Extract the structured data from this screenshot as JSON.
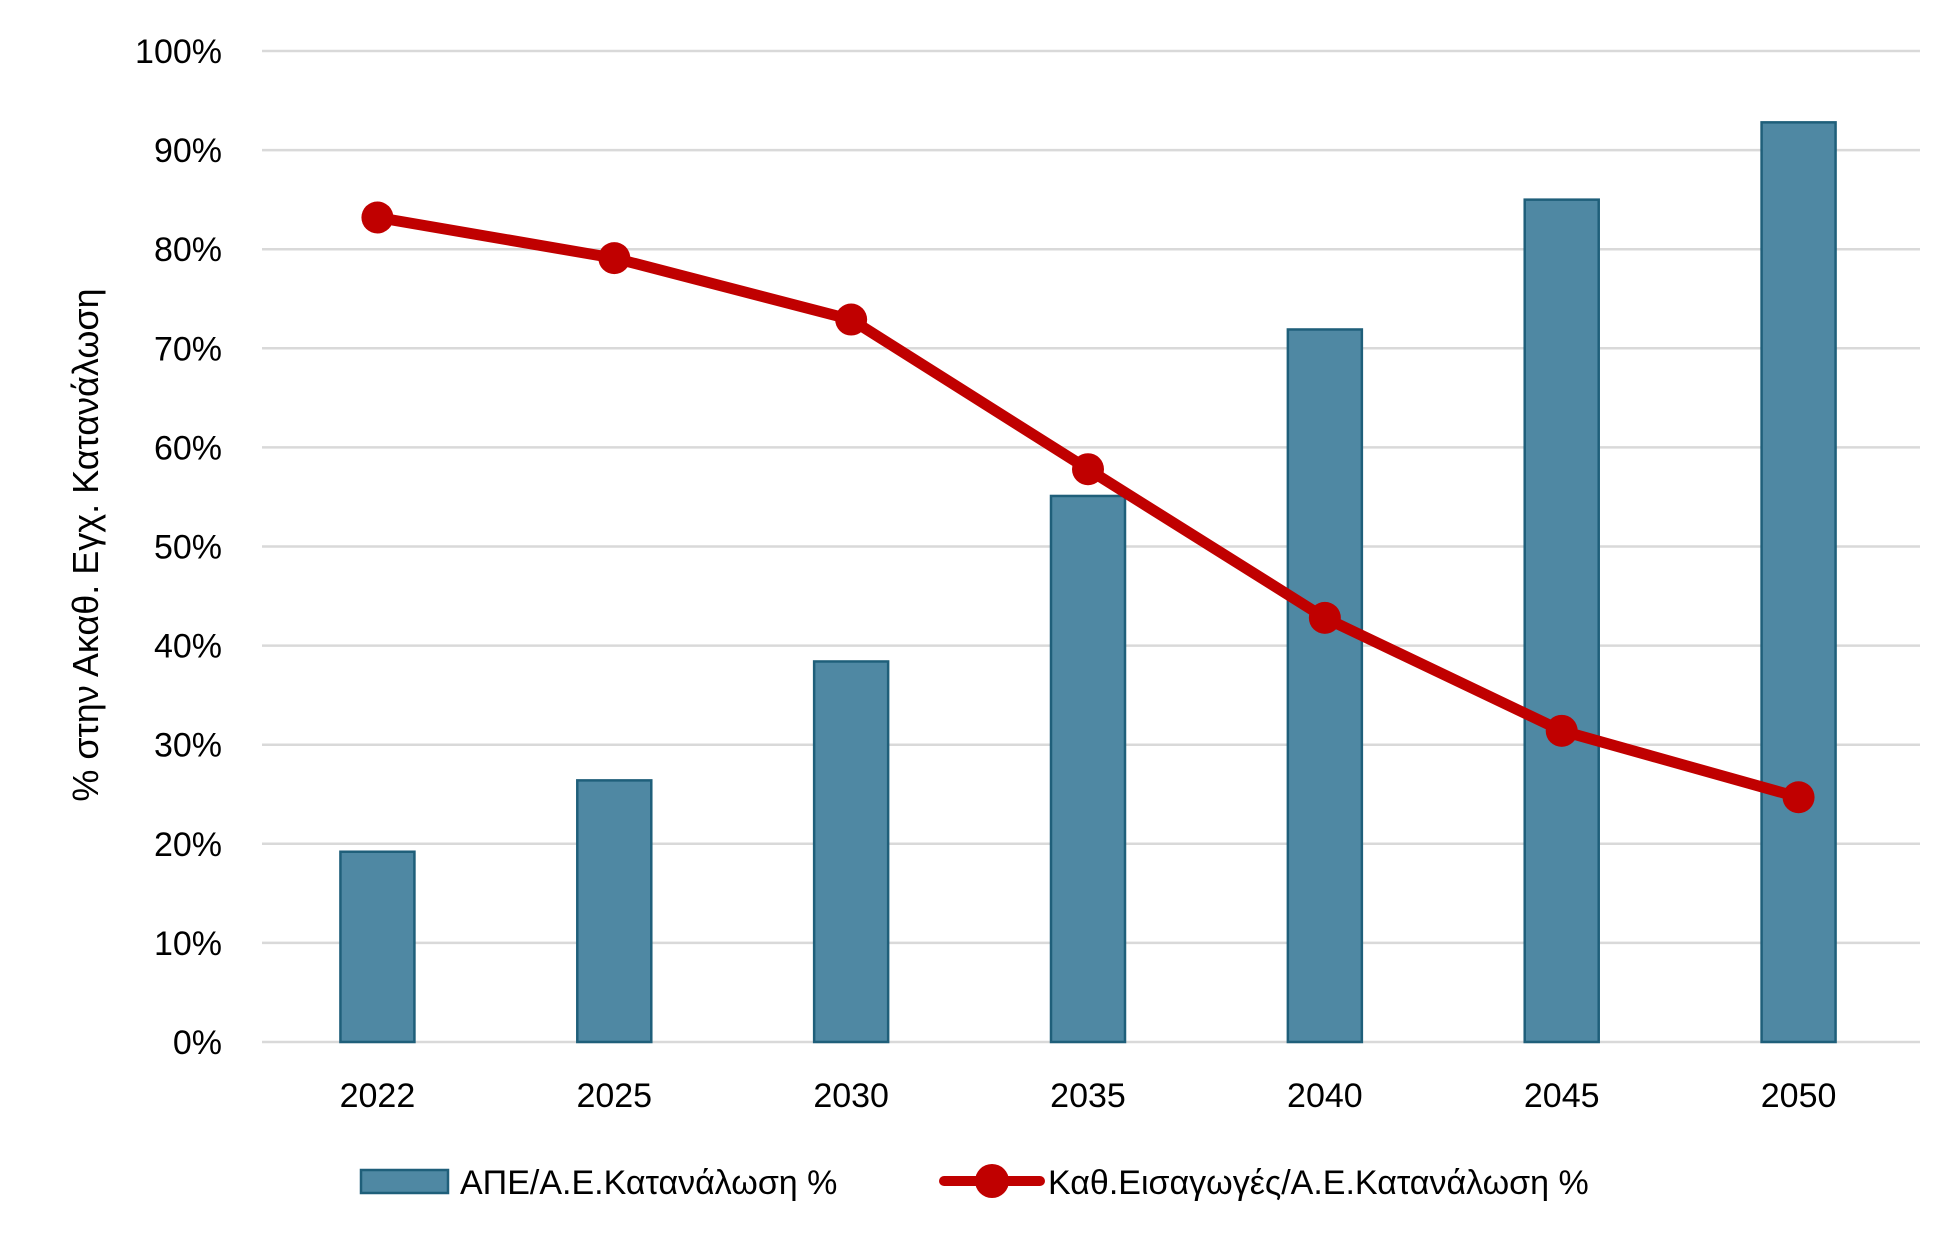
{
  "chart_data": {
    "type": "bar",
    "title": "",
    "xlabel": "",
    "ylabel": "%  στην Ακαθ. Εγχ. Κατανάλωση",
    "categories": [
      "2022",
      "2025",
      "2030",
      "2035",
      "2040",
      "2045",
      "2050"
    ],
    "ylim": [
      0,
      100
    ],
    "yticks": [
      "0%",
      "10%",
      "20%",
      "30%",
      "40%",
      "50%",
      "60%",
      "70%",
      "80%",
      "90%",
      "100%"
    ],
    "grid": true,
    "legend_position": "bottom",
    "series": [
      {
        "name": "ΑΠΕ/Α.Ε.Κατανάλωση %",
        "type": "bar",
        "color": "#4f88a3",
        "border_color": "#1f5f7a",
        "values": [
          19.2,
          26.4,
          38.4,
          55.1,
          71.9,
          85.0,
          92.8
        ]
      },
      {
        "name": "Καθ.Εισαγωγές/Α.Ε.Κατανάλωση %",
        "type": "line",
        "color": "#c00000",
        "values": [
          83.2,
          79.1,
          72.9,
          57.8,
          42.8,
          31.4,
          24.7
        ]
      }
    ]
  }
}
